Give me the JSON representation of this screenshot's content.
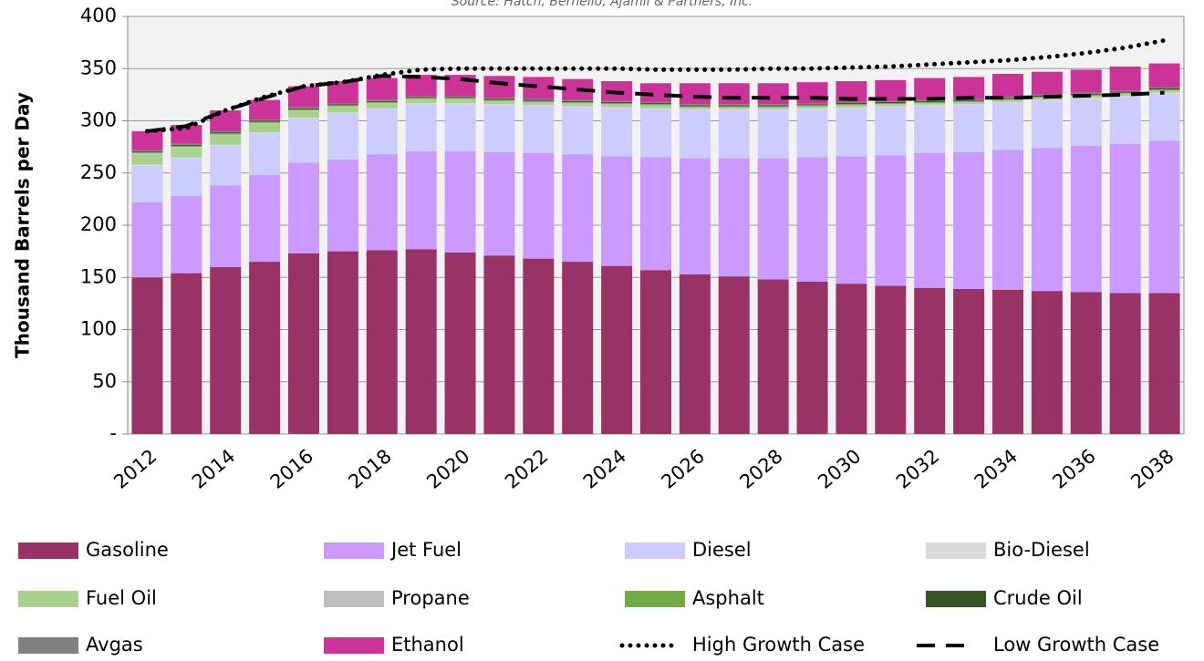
{
  "chart_data": {
    "type": "bar",
    "stacked": true,
    "subtitle": "Source: Hatch, Bernello, Ajamil & Partners, Inc.",
    "y_label": "Thousand Barrels per Day",
    "categories": [
      "2012",
      null,
      "2014",
      null,
      "2016",
      null,
      "2018",
      null,
      "2020",
      null,
      "2022",
      null,
      "2024",
      null,
      "2026",
      null,
      "2028",
      null,
      "2030",
      null,
      "2032",
      null,
      "2034",
      null,
      "2036",
      null,
      "2038"
    ],
    "ylim": [
      0,
      400
    ],
    "yticks": [
      {
        "value": 0,
        "label": "-"
      },
      50,
      100,
      150,
      200,
      250,
      300,
      350,
      400
    ],
    "grid": true,
    "series": [
      {
        "name": "Gasoline",
        "color": "#993366",
        "values": [
          150,
          154,
          160,
          165,
          173,
          175,
          176,
          177,
          174,
          171,
          168,
          165,
          161,
          157,
          153,
          151,
          148,
          146,
          144,
          142,
          140,
          139,
          138,
          137,
          136,
          135,
          135
        ]
      },
      {
        "name": "Jet Fuel",
        "color": "#cc99ff",
        "values": [
          72,
          74,
          78,
          83,
          87,
          88,
          92,
          94,
          97,
          99,
          101,
          103,
          105,
          108,
          111,
          113,
          116,
          119,
          122,
          125,
          129,
          131,
          134,
          137,
          140,
          143,
          146
        ]
      },
      {
        "name": "Diesel",
        "color": "#ccccff",
        "values": [
          35,
          36,
          38,
          40,
          42,
          44,
          43,
          45,
          45,
          45,
          45,
          45,
          46,
          46,
          46,
          46,
          46,
          46,
          46,
          46,
          45,
          45,
          45,
          45,
          45,
          45,
          45
        ]
      },
      {
        "name": "Bio-Diesel",
        "color": "#d9d9d9",
        "values": [
          1,
          1,
          1,
          1,
          1,
          1,
          1,
          1,
          1,
          1,
          1,
          1,
          1,
          1,
          1,
          1,
          1,
          1,
          1,
          1,
          1,
          1,
          1,
          1,
          1,
          1,
          1
        ]
      },
      {
        "name": "Fuel Oil",
        "color": "#a9d18e",
        "values": [
          10,
          9,
          9,
          8,
          6,
          5,
          4,
          3,
          3,
          2,
          2,
          2,
          2,
          2,
          1,
          1,
          1,
          1,
          1,
          1,
          1,
          1,
          1,
          1,
          1,
          1,
          1
        ]
      },
      {
        "name": "Propane",
        "color": "#bfbfbf",
        "values": [
          1,
          1,
          1,
          1,
          1,
          1,
          1,
          1,
          1,
          1,
          1,
          1,
          1,
          1,
          1,
          1,
          1,
          1,
          1,
          1,
          1,
          1,
          1,
          1,
          1,
          1,
          1
        ]
      },
      {
        "name": "Asphalt",
        "color": "#70ad47",
        "values": [
          1,
          1,
          1,
          1,
          1,
          1,
          1,
          1,
          1,
          1,
          1,
          1,
          1,
          1,
          1,
          1,
          1,
          1,
          1,
          1,
          1,
          1,
          1,
          1,
          1,
          1,
          1
        ]
      },
      {
        "name": "Crude Oil",
        "color": "#375623",
        "values": [
          1,
          1,
          1,
          1,
          1,
          1,
          1,
          1,
          1,
          1,
          1,
          1,
          1,
          1,
          1,
          1,
          1,
          1,
          1,
          1,
          1,
          1,
          1,
          1,
          1,
          1,
          1
        ]
      },
      {
        "name": "Avgas",
        "color": "#808080",
        "values": [
          1,
          1,
          1,
          1,
          1,
          1,
          1,
          1,
          1,
          1,
          1,
          1,
          1,
          1,
          1,
          1,
          1,
          1,
          1,
          1,
          1,
          1,
          1,
          1,
          1,
          1,
          1
        ]
      },
      {
        "name": "Ethanol",
        "color": "#cc3399",
        "values": [
          18,
          18,
          20,
          19,
          20,
          21,
          21,
          20,
          20,
          21,
          21,
          20,
          19,
          18,
          20,
          20,
          20,
          20,
          20,
          20,
          21,
          21,
          22,
          22,
          22,
          23,
          23
        ]
      },
      {
        "name": "High Growth Case",
        "type": "line",
        "style": "dotted",
        "color": "#000000",
        "values": [
          290,
          293,
          310,
          323,
          333,
          337,
          344,
          349,
          350,
          350,
          350,
          350,
          350,
          349,
          349,
          349,
          350,
          350,
          351,
          352,
          354,
          356,
          358,
          361,
          365,
          370,
          377
        ]
      },
      {
        "name": "Low Growth Case",
        "type": "line",
        "style": "dashed",
        "color": "#000000",
        "values": [
          290,
          295,
          310,
          322,
          333,
          337,
          343,
          342,
          340,
          336,
          333,
          330,
          327,
          325,
          323,
          322,
          322,
          322,
          321,
          321,
          321,
          322,
          322,
          323,
          324,
          325,
          327
        ]
      }
    ]
  }
}
